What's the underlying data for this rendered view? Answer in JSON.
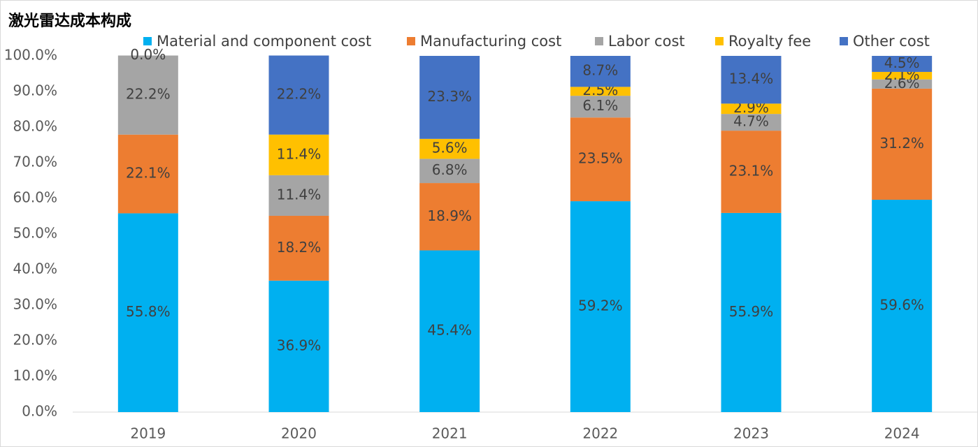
{
  "chart_data": {
    "type": "stacked_bar",
    "title": "激光雷达成本构成",
    "categories": [
      "2019",
      "2020",
      "2021",
      "2022",
      "2023",
      "2024"
    ],
    "series": [
      {
        "name": "Material and component cost",
        "color": "#00b0f0",
        "values": [
          55.8,
          36.9,
          45.4,
          59.2,
          55.9,
          59.6
        ],
        "value_labels": [
          "55.8%",
          "36.9%",
          "45.4%",
          "59.2%",
          "55.9%",
          "59.6%"
        ]
      },
      {
        "name": "Manufacturing cost",
        "color": "#ed7d31",
        "values": [
          22.1,
          18.2,
          18.9,
          23.5,
          23.1,
          31.2
        ],
        "value_labels": [
          "22.1%",
          "18.2%",
          "18.9%",
          "23.5%",
          "23.1%",
          "31.2%"
        ]
      },
      {
        "name": "Labor cost",
        "color": "#a5a5a5",
        "values": [
          22.2,
          11.4,
          6.8,
          6.1,
          4.7,
          2.6
        ],
        "value_labels": [
          "22.2%",
          "11.4%",
          "6.8%",
          "6.1%",
          "4.7%",
          "2.6%"
        ]
      },
      {
        "name": "Royalty fee",
        "color": "#ffc000",
        "values": [
          null,
          11.4,
          5.6,
          2.5,
          2.9,
          2.1
        ],
        "value_labels": [
          null,
          "11.4%",
          "5.6%",
          "2.5%",
          "2.9%",
          "2.1%"
        ]
      },
      {
        "name": "Other cost",
        "color": "#4472c4",
        "values": [
          0.0,
          22.2,
          23.3,
          8.7,
          13.4,
          4.5
        ],
        "value_labels": [
          "0.0%",
          "22.2%",
          "23.3%",
          "8.7%",
          "13.4%",
          "4.5%"
        ]
      }
    ],
    "ylim": [
      0,
      100
    ],
    "yticks": [
      {
        "value": 0,
        "label": "0.0%"
      },
      {
        "value": 10,
        "label": "10.0%"
      },
      {
        "value": 20,
        "label": "20.0%"
      },
      {
        "value": 30,
        "label": "30.0%"
      },
      {
        "value": 40,
        "label": "40.0%"
      },
      {
        "value": 50,
        "label": "50.0%"
      },
      {
        "value": 60,
        "label": "60.0%"
      },
      {
        "value": 70,
        "label": "70.0%"
      },
      {
        "value": 80,
        "label": "80.0%"
      },
      {
        "value": 90,
        "label": "90.0%"
      },
      {
        "value": 100,
        "label": "100.0%"
      }
    ],
    "grid": false
  }
}
